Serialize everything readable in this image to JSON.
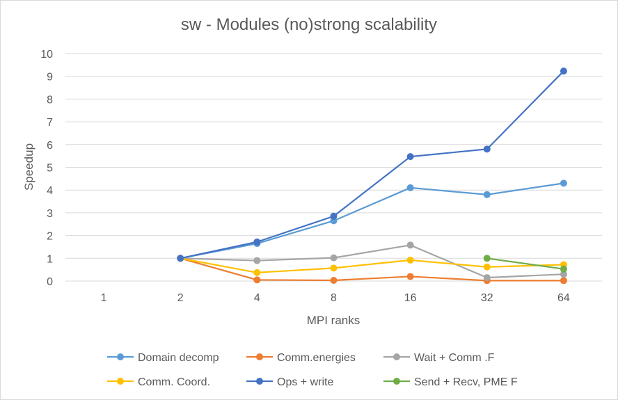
{
  "chart_data": {
    "type": "line",
    "title": "sw - Modules (no)strong scalability",
    "xlabel": "MPI ranks",
    "ylabel": "Speedup",
    "categories": [
      "1",
      "2",
      "4",
      "8",
      "16",
      "32",
      "64"
    ],
    "ylim": [
      0,
      10
    ],
    "yticks": [
      "0",
      "1",
      "2",
      "3",
      "4",
      "5",
      "6",
      "7",
      "8",
      "9",
      "10"
    ],
    "grid": true,
    "legend_position": "bottom",
    "series": [
      {
        "name": "Domain decomp",
        "color": "#5B9BD5",
        "values": [
          null,
          1,
          1.65,
          2.65,
          4.1,
          3.8,
          4.3
        ]
      },
      {
        "name": "Comm.energies",
        "color": "#ED7D31",
        "values": [
          null,
          1,
          0.05,
          0.03,
          0.2,
          0.02,
          0.02
        ]
      },
      {
        "name": "Wait + Comm .F",
        "color": "#A5A5A5",
        "values": [
          null,
          1,
          0.9,
          1.02,
          1.58,
          0.15,
          0.3
        ]
      },
      {
        "name": "Comm. Coord.",
        "color": "#FFC000",
        "values": [
          null,
          1,
          0.37,
          0.57,
          0.92,
          0.62,
          0.72
        ]
      },
      {
        "name": "Ops + write",
        "color": "#4472C4",
        "values": [
          null,
          1,
          1.72,
          2.85,
          5.47,
          5.8,
          9.23
        ]
      },
      {
        "name": "Send + Recv, PME F",
        "color": "#70AD47",
        "values": [
          null,
          null,
          null,
          null,
          null,
          1,
          0.53
        ]
      }
    ]
  }
}
